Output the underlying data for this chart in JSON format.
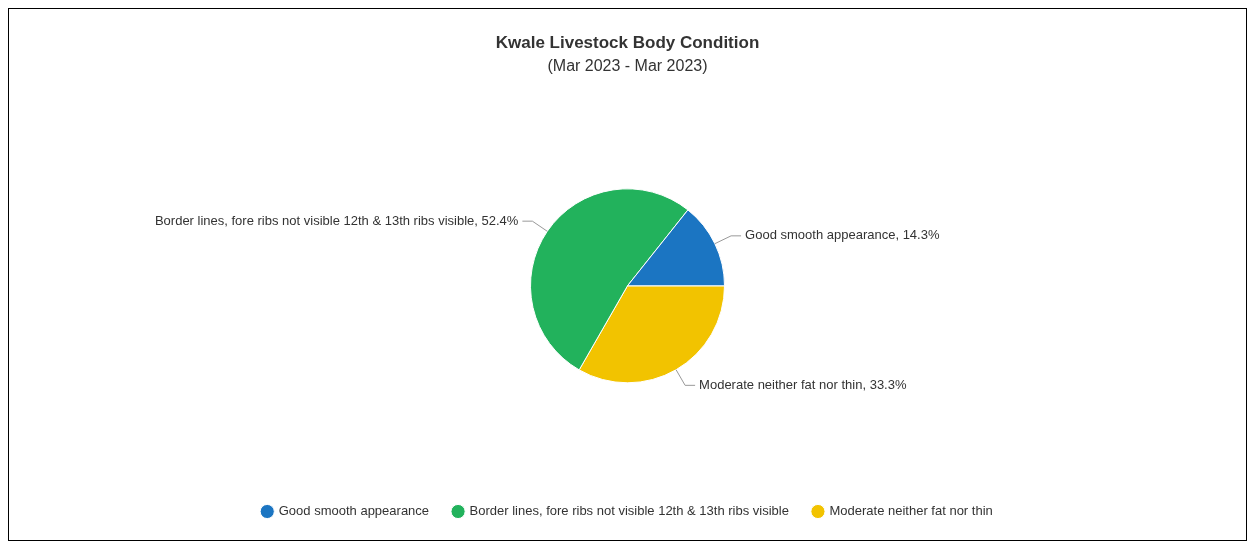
{
  "chart_data": {
    "type": "pie",
    "title": "Kwale Livestock Body Condition",
    "subtitle": "(Mar 2023 - Mar 2023)",
    "categories": [
      "Good smooth appearance",
      "Border lines, fore ribs not visible 12th & 13th ribs visible",
      "Moderate neither fat nor thin"
    ],
    "values": [
      14.3,
      52.4,
      33.3
    ],
    "colors": [
      "#1b75c2",
      "#22b25c",
      "#f2c300"
    ],
    "value_labels": [
      "Good smooth appearance, 14.3%",
      "Border lines, fore ribs not visible 12th & 13th ribs visible, 52.4%",
      "Moderate neither fat nor thin, 33.3%"
    ],
    "legend": "bottom"
  }
}
